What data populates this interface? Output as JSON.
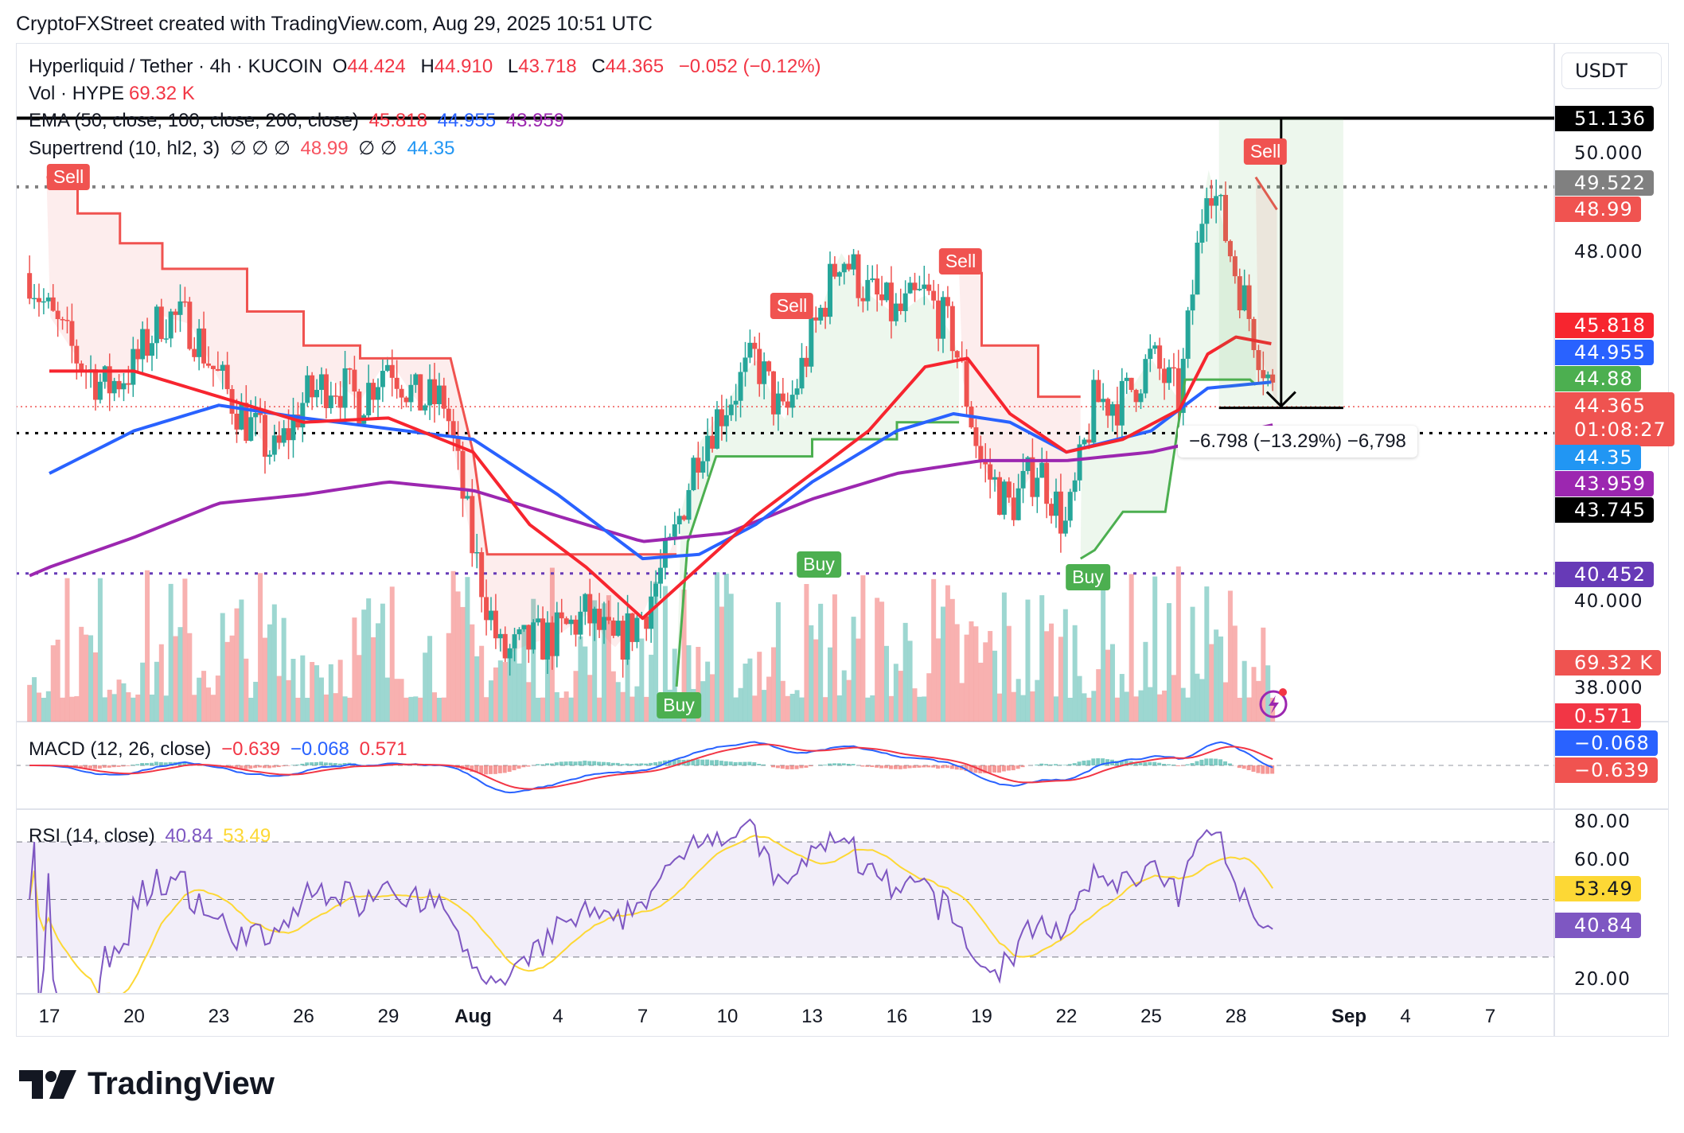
{
  "credit": "CryptoFXStreet created with TradingView.com, Aug 29, 2025 10:51 UTC",
  "legend": {
    "symbol": "Hyperliquid / Tether · 4h · KUCOIN",
    "o_label": "O",
    "o": "44.424",
    "h_label": "H",
    "h": "44.910",
    "l_label": "L",
    "l": "43.718",
    "c_label": "C",
    "c": "44.365",
    "change": "−0.052 (−0.12%)",
    "vol_label": "Vol · HYPE",
    "vol": "69.32 K",
    "ema_label": "EMA (50, close, 100, close, 200, close)",
    "ema50": "45.818",
    "ema100": "44.955",
    "ema200": "43.959",
    "st_label": "Supertrend (10, hl2, 3)",
    "st_empty": "∅ ∅ ∅",
    "st_up": "48.99",
    "st_empty2": "∅ ∅",
    "st_down": "44.35",
    "macd_label": "MACD (12, 26, close)",
    "macd_hist": "−0.639",
    "macd": "−0.068",
    "macd_signal": "0.571",
    "rsi_label": "RSI (14, close)",
    "rsi": "40.84",
    "rsi_ma": "53.49"
  },
  "currency_button": "USDT",
  "price_axis": [
    "50.000",
    "48.000",
    "40.000",
    "38.000"
  ],
  "rsi_axis": [
    "80.00",
    "60.00",
    "20.00"
  ],
  "price_tags": [
    {
      "text": "51.136",
      "color": "#000000"
    },
    {
      "text": "49.522",
      "color": "#808080"
    },
    {
      "text": "48.99",
      "color": "#f05350"
    },
    {
      "text": "45.818",
      "color": "#f7252f"
    },
    {
      "text": "44.955",
      "color": "#2962ff"
    },
    {
      "text": "44.88",
      "color": "#4caf50"
    },
    {
      "text": "44.365",
      "color": "#ef5350"
    },
    {
      "text": "01:08:27",
      "color": "#ef5350"
    },
    {
      "text": "44.35",
      "color": "#2196f3"
    },
    {
      "text": "43.959",
      "color": "#9c27b0"
    },
    {
      "text": "43.745",
      "color": "#000000"
    },
    {
      "text": "40.452",
      "color": "#673ab7"
    },
    {
      "text": "69.32 K",
      "color": "#ef5350"
    },
    {
      "text": "0.571",
      "color": "#f23645"
    },
    {
      "text": "−0.068",
      "color": "#2962ff"
    },
    {
      "text": "−0.639",
      "color": "#f05350"
    },
    {
      "text": "53.49",
      "color": "#fdd835"
    },
    {
      "text": "40.84",
      "color": "#7e57c2"
    }
  ],
  "dates": [
    "17",
    "20",
    "23",
    "26",
    "29",
    "Aug",
    "4",
    "7",
    "10",
    "13",
    "16",
    "19",
    "22",
    "25",
    "28",
    "Sep",
    "4",
    "7"
  ],
  "signals": {
    "sell": "Sell",
    "buy": "Buy"
  },
  "measure_label": "−6.798 (−13.29%) −6,798",
  "logo_text": "TradingView",
  "colors": {
    "up": "#26a69a",
    "down": "#ef5350",
    "ema50": "#f7252f",
    "ema100": "#2962ff",
    "ema200": "#9c27b0",
    "st_up": "#4caf50",
    "st_down": "#f05350"
  },
  "chart_data": {
    "type": "candlestick",
    "title": "Hyperliquid / Tether · 4h · KUCOIN",
    "x_unit": "days since Jul 17 2025",
    "ylim": [
      37.5,
      52.5
    ],
    "daily_close_path": [
      [
        -0.7,
        47.5
      ],
      [
        0,
        46.5
      ],
      [
        1,
        45.5
      ],
      [
        2,
        44.8
      ],
      [
        3,
        45.3
      ],
      [
        4,
        46.5
      ],
      [
        5,
        46.3
      ],
      [
        6,
        45
      ],
      [
        7,
        44
      ],
      [
        8,
        43.2
      ],
      [
        9,
        44.5
      ],
      [
        10,
        45
      ],
      [
        11,
        44.5
      ],
      [
        12,
        45.5
      ],
      [
        13,
        44.5
      ],
      [
        14,
        44.5
      ],
      [
        15,
        41
      ],
      [
        16,
        38.5
      ],
      [
        17,
        38.8
      ],
      [
        18,
        39
      ],
      [
        19,
        39.5
      ],
      [
        20,
        38.7
      ],
      [
        21,
        39.5
      ],
      [
        22,
        41
      ],
      [
        23,
        43.5
      ],
      [
        24,
        44.5
      ],
      [
        25,
        45.5
      ],
      [
        26,
        44
      ],
      [
        27,
        46
      ],
      [
        28,
        48
      ],
      [
        29,
        47
      ],
      [
        30,
        46.5
      ],
      [
        31,
        47
      ],
      [
        32,
        46
      ],
      [
        33,
        43
      ],
      [
        34,
        42
      ],
      [
        35,
        43
      ],
      [
        36,
        41.5
      ],
      [
        37,
        44.5
      ],
      [
        38,
        44.5
      ],
      [
        39,
        45.5
      ],
      [
        40,
        44.5
      ],
      [
        41,
        50
      ],
      [
        42,
        47.5
      ],
      [
        43.45,
        44.365
      ]
    ],
    "ema50": [
      [
        0,
        45.2
      ],
      [
        3,
        45.2
      ],
      [
        6,
        44.6
      ],
      [
        9,
        44
      ],
      [
        12,
        44.1
      ],
      [
        15,
        43.3
      ],
      [
        17,
        41.6
      ],
      [
        19,
        40.6
      ],
      [
        21,
        39.4
      ],
      [
        23,
        40.6
      ],
      [
        25,
        41.8
      ],
      [
        27,
        42.8
      ],
      [
        29,
        43.8
      ],
      [
        31,
        45.3
      ],
      [
        32.5,
        45.5
      ],
      [
        34,
        44.2
      ],
      [
        36,
        43.3
      ],
      [
        38,
        43.6
      ],
      [
        40,
        44.3
      ],
      [
        41,
        45.6
      ],
      [
        42,
        46
      ],
      [
        43.45,
        45.818
      ]
    ],
    "ema100": [
      [
        0,
        42.8
      ],
      [
        3,
        43.8
      ],
      [
        6,
        44.4
      ],
      [
        9,
        44.1
      ],
      [
        15,
        43.6
      ],
      [
        18,
        42.3
      ],
      [
        21,
        40.8
      ],
      [
        23,
        40.9
      ],
      [
        25,
        41.6
      ],
      [
        27,
        42.6
      ],
      [
        30,
        43.8
      ],
      [
        32,
        44.2
      ],
      [
        34,
        44
      ],
      [
        36,
        43.3
      ],
      [
        39,
        43.8
      ],
      [
        41,
        44.8
      ],
      [
        43.45,
        44.955
      ]
    ],
    "ema200": [
      [
        -0.7,
        40.4
      ],
      [
        0,
        40.6
      ],
      [
        3,
        41.3
      ],
      [
        6,
        42.1
      ],
      [
        9,
        42.3
      ],
      [
        12,
        42.6
      ],
      [
        15,
        42.4
      ],
      [
        18,
        41.8
      ],
      [
        21,
        41.2
      ],
      [
        24,
        41.4
      ],
      [
        27,
        42.2
      ],
      [
        30,
        42.8
      ],
      [
        33,
        43.1
      ],
      [
        36,
        43.1
      ],
      [
        39,
        43.3
      ],
      [
        43.45,
        43.959
      ]
    ],
    "supertrend_down": [
      [
        [
          -0.1,
          49.75
        ],
        [
          1,
          49.75
        ],
        [
          1,
          48.9
        ],
        [
          2.5,
          48.9
        ],
        [
          2.5,
          48.2
        ],
        [
          4,
          48.2
        ],
        [
          4,
          47.6
        ],
        [
          7,
          47.6
        ],
        [
          7,
          46.6
        ],
        [
          9,
          46.6
        ],
        [
          9,
          45.8
        ],
        [
          11,
          45.8
        ],
        [
          11,
          45.5
        ],
        [
          14.2,
          45.5
        ],
        [
          15,
          43.3
        ],
        [
          15.5,
          40.9
        ],
        [
          22.2,
          40.9
        ]
      ],
      [
        [
          32.2,
          47.5
        ],
        [
          33,
          47.5
        ],
        [
          33,
          45.8
        ],
        [
          35,
          45.8
        ],
        [
          35,
          44.6
        ],
        [
          36.5,
          44.6
        ]
      ],
      [
        [
          42.7,
          49.75
        ],
        [
          43.45,
          48.99
        ]
      ]
    ],
    "supertrend_up": [
      [
        [
          22.2,
          37.8
        ],
        [
          22.6,
          41.2
        ],
        [
          23.6,
          43.2
        ],
        [
          27,
          43.2
        ],
        [
          27,
          43.6
        ],
        [
          30,
          43.6
        ],
        [
          30,
          44
        ],
        [
          32.2,
          44
        ]
      ],
      [
        [
          36.5,
          40.8
        ],
        [
          37,
          41
        ],
        [
          38,
          41.9
        ],
        [
          39.5,
          41.9
        ],
        [
          40.2,
          45
        ],
        [
          42.5,
          45
        ],
        [
          42.7,
          44.88
        ]
      ]
    ],
    "levels": [
      51.136,
      49.522,
      43.745,
      40.452
    ],
    "measure": {
      "from": 51.136,
      "to": 44.338,
      "change": -6.798,
      "change_pct": -13.29
    },
    "last": {
      "open": 44.424,
      "high": 44.91,
      "low": 43.718,
      "close": 44.365,
      "volume_k": 69.32
    }
  }
}
